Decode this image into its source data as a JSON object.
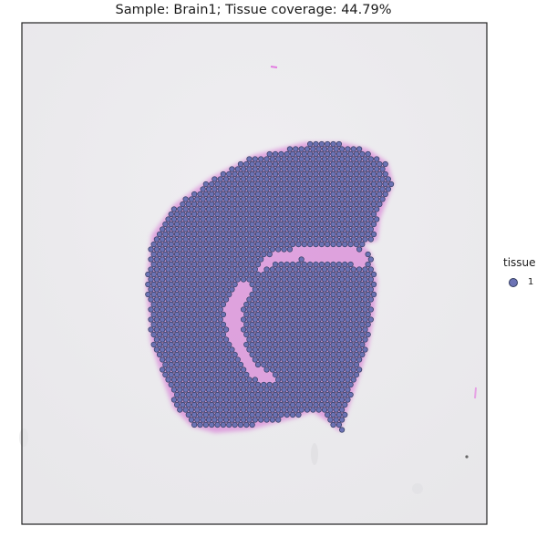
{
  "chart_data": {
    "type": "scatter",
    "title": "Sample: Brain1; Tissue coverage: 44.79%",
    "legend": {
      "title": "tissue",
      "placement": "right",
      "entries": [
        {
          "label": "1",
          "color": "#6c73b5"
        }
      ]
    },
    "colors": {
      "spot_fill": "#6c73b5",
      "spot_edge": "#2f3a5c",
      "background": "#ebebed",
      "tissue_stain": "#d98ad8"
    },
    "x_axis": {
      "ticks": false,
      "label": ""
    },
    "y_axis": {
      "ticks": false,
      "label": ""
    },
    "grid": false
  }
}
